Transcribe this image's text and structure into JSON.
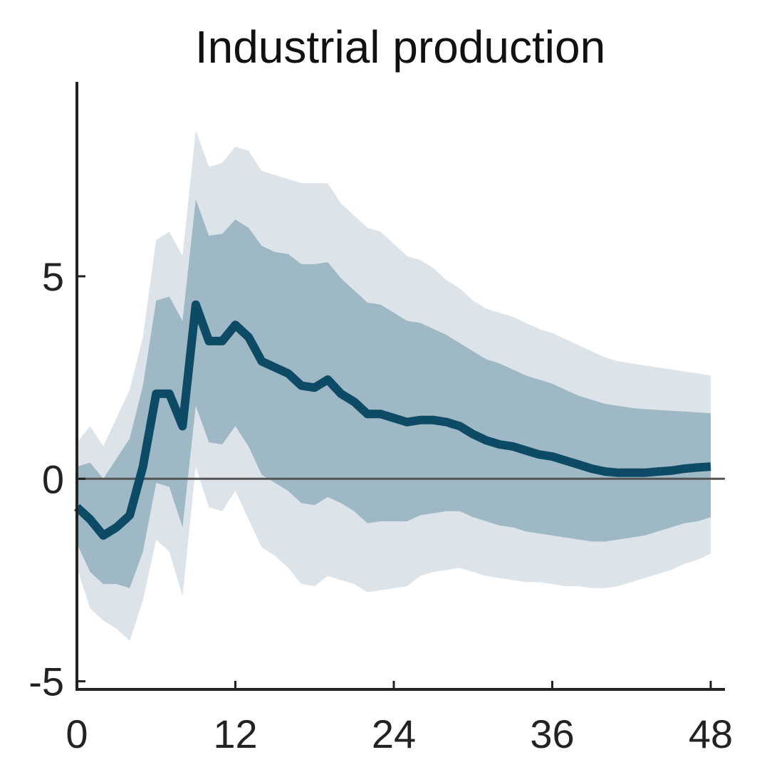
{
  "chart_data": {
    "type": "line",
    "title": "Industrial production",
    "xlabel": "",
    "ylabel": "",
    "xlim": [
      0,
      48
    ],
    "ylim": [
      -5.2,
      9.8
    ],
    "xticks": [
      0,
      12,
      24,
      36,
      48
    ],
    "yticks": [
      -5,
      0,
      5
    ],
    "zero_line": true,
    "grid": false,
    "legend": "none",
    "colors": {
      "line": "#0d4a65",
      "inner_band": "#9eb8c5",
      "outer_band": "#dce4ea",
      "zero_line": "#555555",
      "axis": "#222222"
    },
    "x": [
      0,
      1,
      2,
      3,
      4,
      5,
      6,
      7,
      8,
      9,
      10,
      11,
      12,
      13,
      14,
      15,
      16,
      17,
      18,
      19,
      20,
      21,
      22,
      23,
      24,
      25,
      26,
      27,
      28,
      29,
      30,
      31,
      32,
      33,
      34,
      35,
      36,
      37,
      38,
      39,
      40,
      41,
      42,
      43,
      44,
      45,
      46,
      47,
      48
    ],
    "series": [
      {
        "values": [
          -0.7,
          -1.0,
          -1.4,
          -1.2,
          -0.9,
          0.3,
          2.1,
          2.1,
          1.3,
          4.3,
          3.4,
          3.4,
          3.8,
          3.5,
          2.9,
          2.75,
          2.6,
          2.3,
          2.25,
          2.45,
          2.1,
          1.9,
          1.6,
          1.6,
          1.5,
          1.4,
          1.45,
          1.45,
          1.4,
          1.3,
          1.1,
          0.95,
          0.85,
          0.8,
          0.7,
          0.6,
          0.55,
          0.45,
          0.35,
          0.25,
          0.18,
          0.15,
          0.15,
          0.15,
          0.18,
          0.2,
          0.25,
          0.28,
          0.3
        ]
      }
    ],
    "bands": {
      "outer_upper": [
        0.9,
        1.3,
        0.8,
        1.5,
        2.2,
        3.5,
        5.9,
        6.1,
        5.5,
        8.6,
        7.7,
        7.8,
        8.2,
        8.1,
        7.6,
        7.5,
        7.4,
        7.3,
        7.3,
        7.3,
        6.8,
        6.5,
        6.2,
        6.1,
        5.8,
        5.5,
        5.4,
        5.2,
        4.9,
        4.7,
        4.4,
        4.2,
        4.1,
        4.0,
        3.85,
        3.7,
        3.6,
        3.45,
        3.3,
        3.15,
        3.0,
        2.9,
        2.85,
        2.8,
        2.75,
        2.7,
        2.65,
        2.6,
        2.55
      ],
      "inner_upper": [
        0.3,
        0.4,
        0.0,
        0.5,
        1.0,
        2.3,
        4.4,
        4.5,
        3.9,
        6.9,
        6.0,
        6.05,
        6.4,
        6.2,
        5.75,
        5.6,
        5.55,
        5.3,
        5.3,
        5.35,
        4.95,
        4.65,
        4.35,
        4.3,
        4.1,
        3.9,
        3.85,
        3.7,
        3.55,
        3.35,
        3.15,
        2.95,
        2.85,
        2.7,
        2.55,
        2.45,
        2.35,
        2.2,
        2.05,
        1.95,
        1.85,
        1.8,
        1.75,
        1.72,
        1.7,
        1.68,
        1.66,
        1.64,
        1.62
      ],
      "inner_lower": [
        -1.6,
        -2.3,
        -2.6,
        -2.6,
        -2.7,
        -1.8,
        -0.1,
        -0.2,
        -1.2,
        1.8,
        0.9,
        0.85,
        1.3,
        0.8,
        0.1,
        -0.1,
        -0.3,
        -0.6,
        -0.65,
        -0.45,
        -0.6,
        -0.8,
        -1.1,
        -1.05,
        -1.05,
        -1.05,
        -0.9,
        -0.85,
        -0.8,
        -0.8,
        -0.95,
        -1.05,
        -1.15,
        -1.2,
        -1.3,
        -1.35,
        -1.4,
        -1.45,
        -1.5,
        -1.55,
        -1.55,
        -1.5,
        -1.45,
        -1.4,
        -1.3,
        -1.2,
        -1.1,
        -1.05,
        -0.95
      ],
      "outer_lower": [
        -2.2,
        -3.2,
        -3.5,
        -3.7,
        -4.0,
        -3.0,
        -1.5,
        -1.8,
        -2.9,
        0.3,
        -0.7,
        -0.8,
        -0.3,
        -1.0,
        -1.7,
        -1.9,
        -2.2,
        -2.6,
        -2.65,
        -2.4,
        -2.5,
        -2.6,
        -2.8,
        -2.75,
        -2.7,
        -2.65,
        -2.4,
        -2.3,
        -2.25,
        -2.2,
        -2.3,
        -2.4,
        -2.45,
        -2.5,
        -2.55,
        -2.55,
        -2.6,
        -2.65,
        -2.65,
        -2.7,
        -2.7,
        -2.65,
        -2.55,
        -2.45,
        -2.35,
        -2.25,
        -2.1,
        -2.0,
        -1.85
      ]
    }
  }
}
